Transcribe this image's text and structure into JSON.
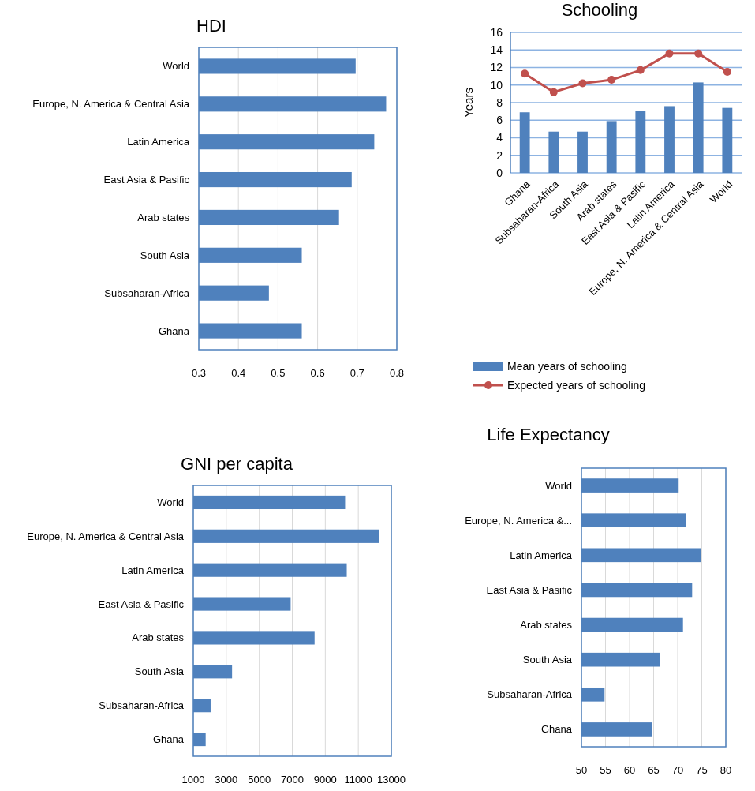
{
  "chart_data": [
    {
      "type": "bar",
      "orientation": "horizontal",
      "title": "HDI",
      "categories": [
        "World",
        "Europe, N. America & Central Asia",
        "Latin America",
        "East Asia & Pasific",
        "Arab states",
        "South Asia",
        "Subsaharan-Africa",
        "Ghana"
      ],
      "values": [
        0.696,
        0.773,
        0.743,
        0.686,
        0.654,
        0.56,
        0.477,
        0.56
      ],
      "color": "#4f81bd",
      "xlim": [
        0.3,
        0.8
      ],
      "xticks": [
        0.3,
        0.4,
        0.5,
        0.6,
        0.7,
        0.8
      ],
      "grid": "x"
    },
    {
      "type": "bar",
      "title": "Schooling",
      "ylabel": "Years",
      "categories": [
        "Ghana",
        "Subsaharan-Africa",
        "South Asia",
        "Arab states",
        "East Asia & Pasific",
        "Latin America",
        "Europe, N. America & Central Asia",
        "World"
      ],
      "series": [
        {
          "name": "Mean years of schooling",
          "type": "bar",
          "color": "#4f81bd",
          "values": [
            6.9,
            4.7,
            4.7,
            5.9,
            7.1,
            7.6,
            10.3,
            7.4
          ]
        },
        {
          "name": "Expected years of schooling",
          "type": "line",
          "color": "#c0504d",
          "values": [
            11.3,
            9.2,
            10.2,
            10.6,
            11.7,
            13.6,
            13.6,
            11.5
          ]
        }
      ],
      "ylim": [
        0,
        16
      ],
      "yticks": [
        0,
        2,
        4,
        6,
        8,
        10,
        12,
        14,
        16
      ],
      "grid": "y",
      "legend": "bottom",
      "marker": "circle"
    },
    {
      "type": "bar",
      "orientation": "horizontal",
      "title": "GNI per capita",
      "categories": [
        "World",
        "Europe, N. America & Central Asia",
        "Latin America",
        "East Asia & Pasific",
        "Arab states",
        "South Asia",
        "Subsaharan-Africa",
        "Ghana"
      ],
      "values": [
        10200,
        12250,
        10300,
        6900,
        8350,
        3350,
        2050,
        1750
      ],
      "color": "#4f81bd",
      "xlim": [
        1000,
        13000
      ],
      "xticks": [
        1000,
        3000,
        5000,
        7000,
        9000,
        11000,
        13000
      ],
      "grid": "x"
    },
    {
      "type": "bar",
      "orientation": "horizontal",
      "title": "Life Expectancy",
      "categories": [
        "World",
        "Europe, N. America &...",
        "Latin America",
        "East Asia & Pasific",
        "Arab states",
        "South Asia",
        "Subsaharan-Africa",
        "Ghana"
      ],
      "values": [
        70.2,
        71.7,
        74.9,
        73,
        71.1,
        66.3,
        54.8,
        64.7
      ],
      "color": "#4f81bd",
      "xlim": [
        50,
        80
      ],
      "xticks": [
        50,
        55,
        60,
        65,
        70,
        75,
        80
      ],
      "grid": "x"
    }
  ]
}
